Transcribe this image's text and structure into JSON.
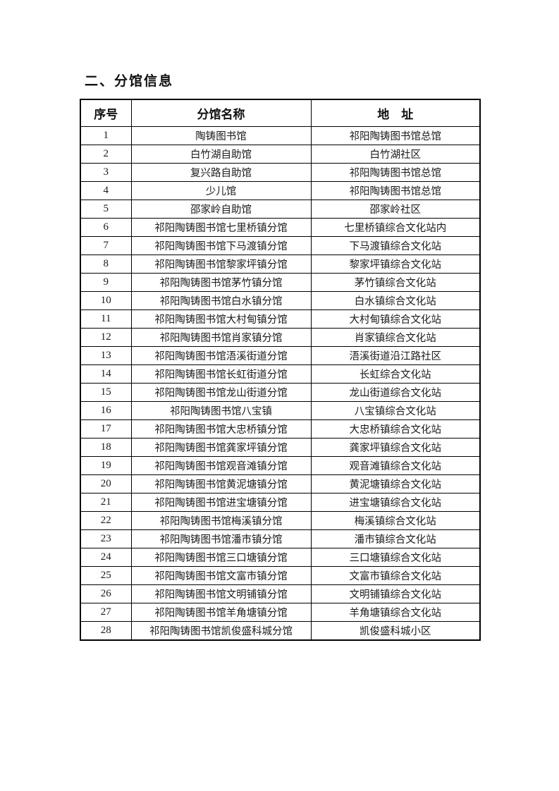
{
  "page": {
    "title": "二、分馆信息"
  },
  "colors": {
    "background": "#ffffff",
    "text": "#1a1a1a",
    "border": "#000000"
  },
  "table": {
    "headers": {
      "index": "序号",
      "name": "分馆名称",
      "address": "地　址"
    },
    "rows": [
      {
        "index": "1",
        "name": "陶铸图书馆",
        "address": "祁阳陶铸图书馆总馆"
      },
      {
        "index": "2",
        "name": "白竹湖自助馆",
        "address": "白竹湖社区"
      },
      {
        "index": "3",
        "name": "复兴路自助馆",
        "address": "祁阳陶铸图书馆总馆"
      },
      {
        "index": "4",
        "name": "少儿馆",
        "address": "祁阳陶铸图书馆总馆"
      },
      {
        "index": "5",
        "name": "邵家岭自助馆",
        "address": "邵家岭社区"
      },
      {
        "index": "6",
        "name": "祁阳陶铸图书馆七里桥镇分馆",
        "address": "七里桥镇综合文化站内"
      },
      {
        "index": "7",
        "name": "祁阳陶铸图书馆下马渡镇分馆",
        "address": "下马渡镇综合文化站"
      },
      {
        "index": "8",
        "name": "祁阳陶铸图书馆黎家坪镇分馆",
        "address": "黎家坪镇综合文化站"
      },
      {
        "index": "9",
        "name": "祁阳陶铸图书馆茅竹镇分馆",
        "address": "茅竹镇综合文化站"
      },
      {
        "index": "10",
        "name": "祁阳陶铸图书馆白水镇分馆",
        "address": "白水镇综合文化站"
      },
      {
        "index": "11",
        "name": "祁阳陶铸图书馆大村甸镇分馆",
        "address": "大村甸镇综合文化站"
      },
      {
        "index": "12",
        "name": "祁阳陶铸图书馆肖家镇分馆",
        "address": "肖家镇综合文化站"
      },
      {
        "index": "13",
        "name": "祁阳陶铸图书馆浯溪街道分馆",
        "address": "浯溪街道沿江路社区"
      },
      {
        "index": "14",
        "name": "祁阳陶铸图书馆长虹街道分馆",
        "address": "长虹综合文化站"
      },
      {
        "index": "15",
        "name": "祁阳陶铸图书馆龙山街道分馆",
        "address": "龙山街道综合文化站"
      },
      {
        "index": "16",
        "name": "祁阳陶铸图书馆八宝镇",
        "address": "八宝镇综合文化站"
      },
      {
        "index": "17",
        "name": "祁阳陶铸图书馆大忠桥镇分馆",
        "address": "大忠桥镇综合文化站"
      },
      {
        "index": "18",
        "name": "祁阳陶铸图书馆龚家坪镇分馆",
        "address": "龚家坪镇综合文化站"
      },
      {
        "index": "19",
        "name": "祁阳陶铸图书馆观音滩镇分馆",
        "address": "观音滩镇综合文化站"
      },
      {
        "index": "20",
        "name": "祁阳陶铸图书馆黄泥塘镇分馆",
        "address": "黄泥塘镇综合文化站"
      },
      {
        "index": "21",
        "name": "祁阳陶铸图书馆进宝塘镇分馆",
        "address": "进宝塘镇综合文化站"
      },
      {
        "index": "22",
        "name": "祁阳陶铸图书馆梅溪镇分馆",
        "address": "梅溪镇综合文化站"
      },
      {
        "index": "23",
        "name": "祁阳陶铸图书馆潘市镇分馆",
        "address": "潘市镇综合文化站"
      },
      {
        "index": "24",
        "name": "祁阳陶铸图书馆三口塘镇分馆",
        "address": "三口塘镇综合文化站"
      },
      {
        "index": "25",
        "name": "祁阳陶铸图书馆文富市镇分馆",
        "address": "文富市镇综合文化站"
      },
      {
        "index": "26",
        "name": "祁阳陶铸图书馆文明铺镇分馆",
        "address": "文明铺镇综合文化站"
      },
      {
        "index": "27",
        "name": "祁阳陶铸图书馆羊角塘镇分馆",
        "address": "羊角塘镇综合文化站"
      },
      {
        "index": "28",
        "name": "祁阳陶铸图书馆凯俊盛科城分馆",
        "address": "凯俊盛科城小区"
      }
    ]
  }
}
